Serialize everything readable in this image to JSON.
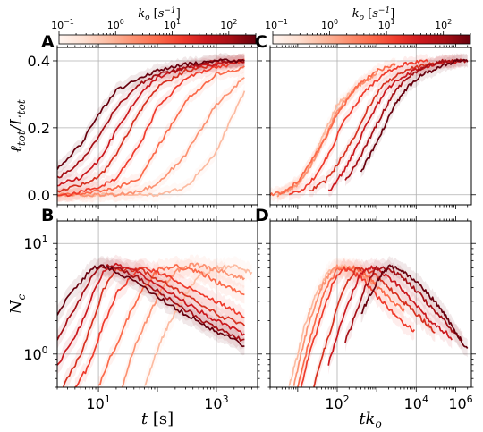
{
  "chart_data": [
    {
      "panel": "A",
      "type": "line",
      "xscale": "log",
      "xlim": [
        2,
        5000
      ],
      "ylim": [
        -0.03,
        0.44
      ],
      "ylabel": "ℓtot/Ltot",
      "yticks": [
        "0.0",
        "0.2",
        "0.4"
      ],
      "grid": true,
      "series": [
        {
          "k_o": 200,
          "color": "#67000d",
          "x": [
            2,
            3,
            5,
            10,
            20,
            50,
            100,
            300,
            1000,
            3000
          ],
          "y": [
            0.08,
            0.11,
            0.15,
            0.24,
            0.31,
            0.35,
            0.37,
            0.39,
            0.4,
            0.4
          ]
        },
        {
          "k_o": 80,
          "color": "#a50f15",
          "x": [
            2,
            3,
            5,
            10,
            20,
            50,
            100,
            300,
            1000,
            3000
          ],
          "y": [
            0.05,
            0.07,
            0.1,
            0.17,
            0.26,
            0.33,
            0.36,
            0.38,
            0.4,
            0.4
          ]
        },
        {
          "k_o": 30,
          "color": "#cb181d",
          "x": [
            2,
            3,
            5,
            10,
            20,
            50,
            100,
            300,
            1000,
            3000
          ],
          "y": [
            0.03,
            0.04,
            0.05,
            0.1,
            0.19,
            0.3,
            0.35,
            0.38,
            0.39,
            0.4
          ]
        },
        {
          "k_o": 10,
          "color": "#d7301f",
          "x": [
            2,
            3,
            5,
            10,
            20,
            50,
            100,
            300,
            1000,
            3000
          ],
          "y": [
            0.01,
            0.02,
            0.03,
            0.05,
            0.12,
            0.25,
            0.32,
            0.37,
            0.39,
            0.4
          ]
        },
        {
          "k_o": 3,
          "color": "#ef3b2c",
          "x": [
            2,
            3,
            5,
            10,
            20,
            50,
            100,
            300,
            1000,
            3000
          ],
          "y": [
            0.0,
            0.0,
            0.01,
            0.02,
            0.05,
            0.15,
            0.26,
            0.35,
            0.38,
            0.4
          ]
        },
        {
          "k_o": 1,
          "color": "#fb6a4a",
          "x": [
            2,
            3,
            5,
            10,
            20,
            50,
            100,
            300,
            1000,
            3000
          ],
          "y": [
            0.0,
            0.0,
            0.0,
            0.01,
            0.02,
            0.05,
            0.14,
            0.28,
            0.36,
            0.38
          ]
        },
        {
          "k_o": 0.3,
          "color": "#fc9272",
          "x": [
            2,
            3,
            5,
            10,
            20,
            50,
            100,
            300,
            1000,
            3000
          ],
          "y": [
            0.0,
            0.0,
            0.0,
            0.0,
            0.0,
            0.01,
            0.03,
            0.12,
            0.27,
            0.35
          ]
        },
        {
          "k_o": 0.1,
          "color": "#fcbba1",
          "x": [
            2,
            3,
            5,
            10,
            20,
            50,
            100,
            300,
            1000,
            3000
          ],
          "y": [
            0.0,
            0.0,
            0.0,
            0.0,
            0.0,
            0.0,
            0.0,
            0.02,
            0.13,
            0.31
          ]
        }
      ]
    },
    {
      "panel": "C",
      "type": "line",
      "xscale": "log",
      "xlim": [
        2,
        250000
      ],
      "ylim": [
        -0.03,
        0.44
      ],
      "grid": true,
      "series": [
        {
          "k_o": 200,
          "color": "#67000d",
          "x": [
            400,
            700,
            1500,
            3000,
            6000,
            15000,
            40000,
            100000,
            200000
          ],
          "y": [
            0.07,
            0.12,
            0.2,
            0.27,
            0.32,
            0.36,
            0.38,
            0.4,
            0.4
          ]
        },
        {
          "k_o": 80,
          "color": "#a50f15",
          "x": [
            160,
            300,
            600,
            1500,
            3000,
            6000,
            15000,
            50000,
            200000
          ],
          "y": [
            0.04,
            0.09,
            0.16,
            0.25,
            0.31,
            0.35,
            0.38,
            0.4,
            0.4
          ]
        },
        {
          "k_o": 30,
          "color": "#cb181d",
          "x": [
            60,
            150,
            300,
            600,
            1500,
            3000,
            8000,
            30000,
            150000
          ],
          "y": [
            0.01,
            0.07,
            0.14,
            0.22,
            0.3,
            0.34,
            0.37,
            0.39,
            0.4
          ]
        },
        {
          "k_o": 10,
          "color": "#d7301f",
          "x": [
            20,
            50,
            100,
            300,
            600,
            1500,
            5000,
            20000,
            100000
          ],
          "y": [
            0.01,
            0.04,
            0.09,
            0.18,
            0.26,
            0.33,
            0.37,
            0.39,
            0.4
          ]
        },
        {
          "k_o": 3,
          "color": "#ef3b2c",
          "x": [
            6,
            15,
            30,
            60,
            150,
            500,
            1500,
            5000,
            20000
          ],
          "y": [
            0.0,
            0.02,
            0.06,
            0.12,
            0.22,
            0.31,
            0.36,
            0.39,
            0.4
          ]
        },
        {
          "k_o": 1,
          "color": "#fb6a4a",
          "x": [
            2,
            5,
            10,
            20,
            50,
            100,
            300,
            1000,
            3000
          ],
          "y": [
            0.0,
            0.01,
            0.04,
            0.09,
            0.17,
            0.24,
            0.32,
            0.37,
            0.39
          ]
        },
        {
          "k_o": 0.3,
          "color": "#fc9272",
          "x": [
            3,
            5,
            10,
            20,
            50,
            100,
            300,
            1000
          ],
          "y": [
            0.0,
            0.01,
            0.03,
            0.08,
            0.17,
            0.25,
            0.32,
            0.36
          ]
        },
        {
          "k_o": 0.1,
          "color": "#fcbba1",
          "x": [
            3,
            5,
            10,
            20,
            50,
            100,
            300
          ],
          "y": [
            0.0,
            0.01,
            0.03,
            0.09,
            0.19,
            0.27,
            0.32
          ]
        }
      ]
    },
    {
      "panel": "B",
      "type": "line",
      "xscale": "log",
      "yscale": "log",
      "xlim": [
        2,
        5000
      ],
      "ylim": [
        0.5,
        16
      ],
      "xlabel": "t [s]",
      "ylabel": "Nc",
      "grid": true,
      "series": [
        {
          "k_o": 200,
          "color": "#67000d",
          "x": [
            2,
            3,
            5,
            8,
            12,
            20,
            50,
            100,
            300,
            1000,
            3000
          ],
          "y": [
            2.3,
            3.2,
            4.5,
            6.0,
            6.3,
            5.6,
            4.3,
            3.3,
            2.3,
            1.6,
            1.2
          ]
        },
        {
          "k_o": 80,
          "color": "#a50f15",
          "x": [
            2,
            3,
            5,
            8,
            12,
            20,
            50,
            100,
            300,
            1000,
            3000
          ],
          "y": [
            1.3,
            2.0,
            3.2,
            5.2,
            6.3,
            6.0,
            4.8,
            3.7,
            2.5,
            1.7,
            1.3
          ]
        },
        {
          "k_o": 30,
          "color": "#cb181d",
          "x": [
            2,
            3,
            5,
            8,
            12,
            20,
            50,
            100,
            300,
            1000,
            3000
          ],
          "y": [
            0.8,
            1.1,
            1.8,
            3.5,
            5.5,
            6.3,
            5.4,
            4.3,
            2.9,
            2.0,
            1.5
          ]
        },
        {
          "k_o": 10,
          "color": "#d7301f",
          "x": [
            2.5,
            3.5,
            5,
            8,
            12,
            20,
            50,
            100,
            300,
            1000,
            3000
          ],
          "y": [
            0.5,
            0.7,
            1.0,
            2.0,
            3.8,
            5.8,
            5.8,
            4.8,
            3.4,
            2.3,
            1.8
          ]
        },
        {
          "k_o": 3,
          "color": "#ef3b2c",
          "x": [
            4,
            6,
            8,
            12,
            20,
            50,
            100,
            300,
            1000,
            3000
          ],
          "y": [
            0.5,
            0.7,
            1.0,
            1.8,
            3.5,
            6.0,
            5.5,
            4.2,
            3.0,
            2.2
          ]
        },
        {
          "k_o": 1,
          "color": "#fb6a4a",
          "x": [
            10,
            14,
            20,
            30,
            50,
            100,
            200,
            500,
            1000,
            3000
          ],
          "y": [
            0.5,
            0.8,
            1.2,
            2.0,
            3.5,
            5.8,
            6.2,
            5.5,
            4.5,
            3.5
          ]
        },
        {
          "k_o": 0.3,
          "color": "#fc9272",
          "x": [
            25,
            35,
            50,
            80,
            120,
            200,
            400,
            1000,
            3000
          ],
          "y": [
            0.5,
            0.9,
            1.5,
            2.5,
            4.0,
            5.6,
            6.5,
            5.8,
            4.8
          ]
        },
        {
          "k_o": 0.1,
          "color": "#fcbba1",
          "x": [
            60,
            80,
            120,
            200,
            300,
            500,
            1000,
            2000,
            4000
          ],
          "y": [
            0.5,
            0.8,
            1.4,
            2.4,
            3.5,
            5.0,
            6.0,
            6.2,
            5.5
          ]
        }
      ]
    },
    {
      "panel": "D",
      "type": "line",
      "xscale": "log",
      "yscale": "log",
      "xlim": [
        2,
        250000
      ],
      "ylim": [
        0.5,
        16
      ],
      "xlabel": "tko",
      "grid": true,
      "series": [
        {
          "k_o": 200,
          "color": "#67000d",
          "x": [
            400,
            700,
            1200,
            2000,
            4000,
            10000,
            30000,
            80000,
            200000
          ],
          "y": [
            2.3,
            3.5,
            5.0,
            6.2,
            5.8,
            4.5,
            3.0,
            1.8,
            1.1
          ]
        },
        {
          "k_o": 80,
          "color": "#a50f15",
          "x": [
            160,
            300,
            500,
            1000,
            2000,
            5000,
            15000,
            50000,
            150000
          ],
          "y": [
            1.3,
            2.3,
            4.0,
            6.0,
            6.0,
            4.8,
            3.2,
            2.0,
            1.3
          ]
        },
        {
          "k_o": 30,
          "color": "#cb181d",
          "x": [
            60,
            100,
            200,
            400,
            800,
            2000,
            6000,
            20000,
            80000
          ],
          "y": [
            0.8,
            1.5,
            3.0,
            5.5,
            6.1,
            5.0,
            3.4,
            2.1,
            1.4
          ]
        },
        {
          "k_o": 10,
          "color": "#d7301f",
          "x": [
            25,
            40,
            80,
            150,
            300,
            800,
            2000,
            8000,
            30000
          ],
          "y": [
            0.5,
            0.9,
            2.0,
            4.0,
            6.0,
            5.5,
            4.0,
            2.5,
            1.6
          ]
        },
        {
          "k_o": 3,
          "color": "#ef3b2c",
          "x": [
            12,
            20,
            40,
            80,
            150,
            400,
            1000,
            3000,
            9000
          ],
          "y": [
            0.5,
            1.0,
            2.2,
            4.5,
            6.0,
            5.0,
            3.4,
            2.2,
            1.6
          ]
        },
        {
          "k_o": 1,
          "color": "#fb6a4a",
          "x": [
            10,
            15,
            25,
            50,
            100,
            300,
            700,
            2000,
            5000
          ],
          "y": [
            0.5,
            0.9,
            1.8,
            3.8,
            5.8,
            6.0,
            4.8,
            3.2,
            2.5
          ]
        },
        {
          "k_o": 0.3,
          "color": "#fc9272",
          "x": [
            8,
            12,
            20,
            40,
            80,
            200,
            500,
            1000
          ],
          "y": [
            0.5,
            1.0,
            2.0,
            4.0,
            6.2,
            6.0,
            5.0,
            4.2
          ]
        },
        {
          "k_o": 0.1,
          "color": "#fcbba1",
          "x": [
            6,
            10,
            15,
            30,
            60,
            150,
            300,
            400
          ],
          "y": [
            0.5,
            1.0,
            1.8,
            3.6,
            5.6,
            6.2,
            5.8,
            5.5
          ]
        }
      ]
    }
  ],
  "colorbar": {
    "label": "ko [s−1]",
    "scale": "log",
    "range": [
      0.1,
      300
    ],
    "colors": [
      "#fff5f0",
      "#fee0d2",
      "#fcbba1",
      "#fc9272",
      "#fb6a4a",
      "#ef3b2c",
      "#cb181d",
      "#a50f15",
      "#67000d"
    ]
  },
  "panel_letters": [
    "A",
    "C",
    "B",
    "D"
  ]
}
